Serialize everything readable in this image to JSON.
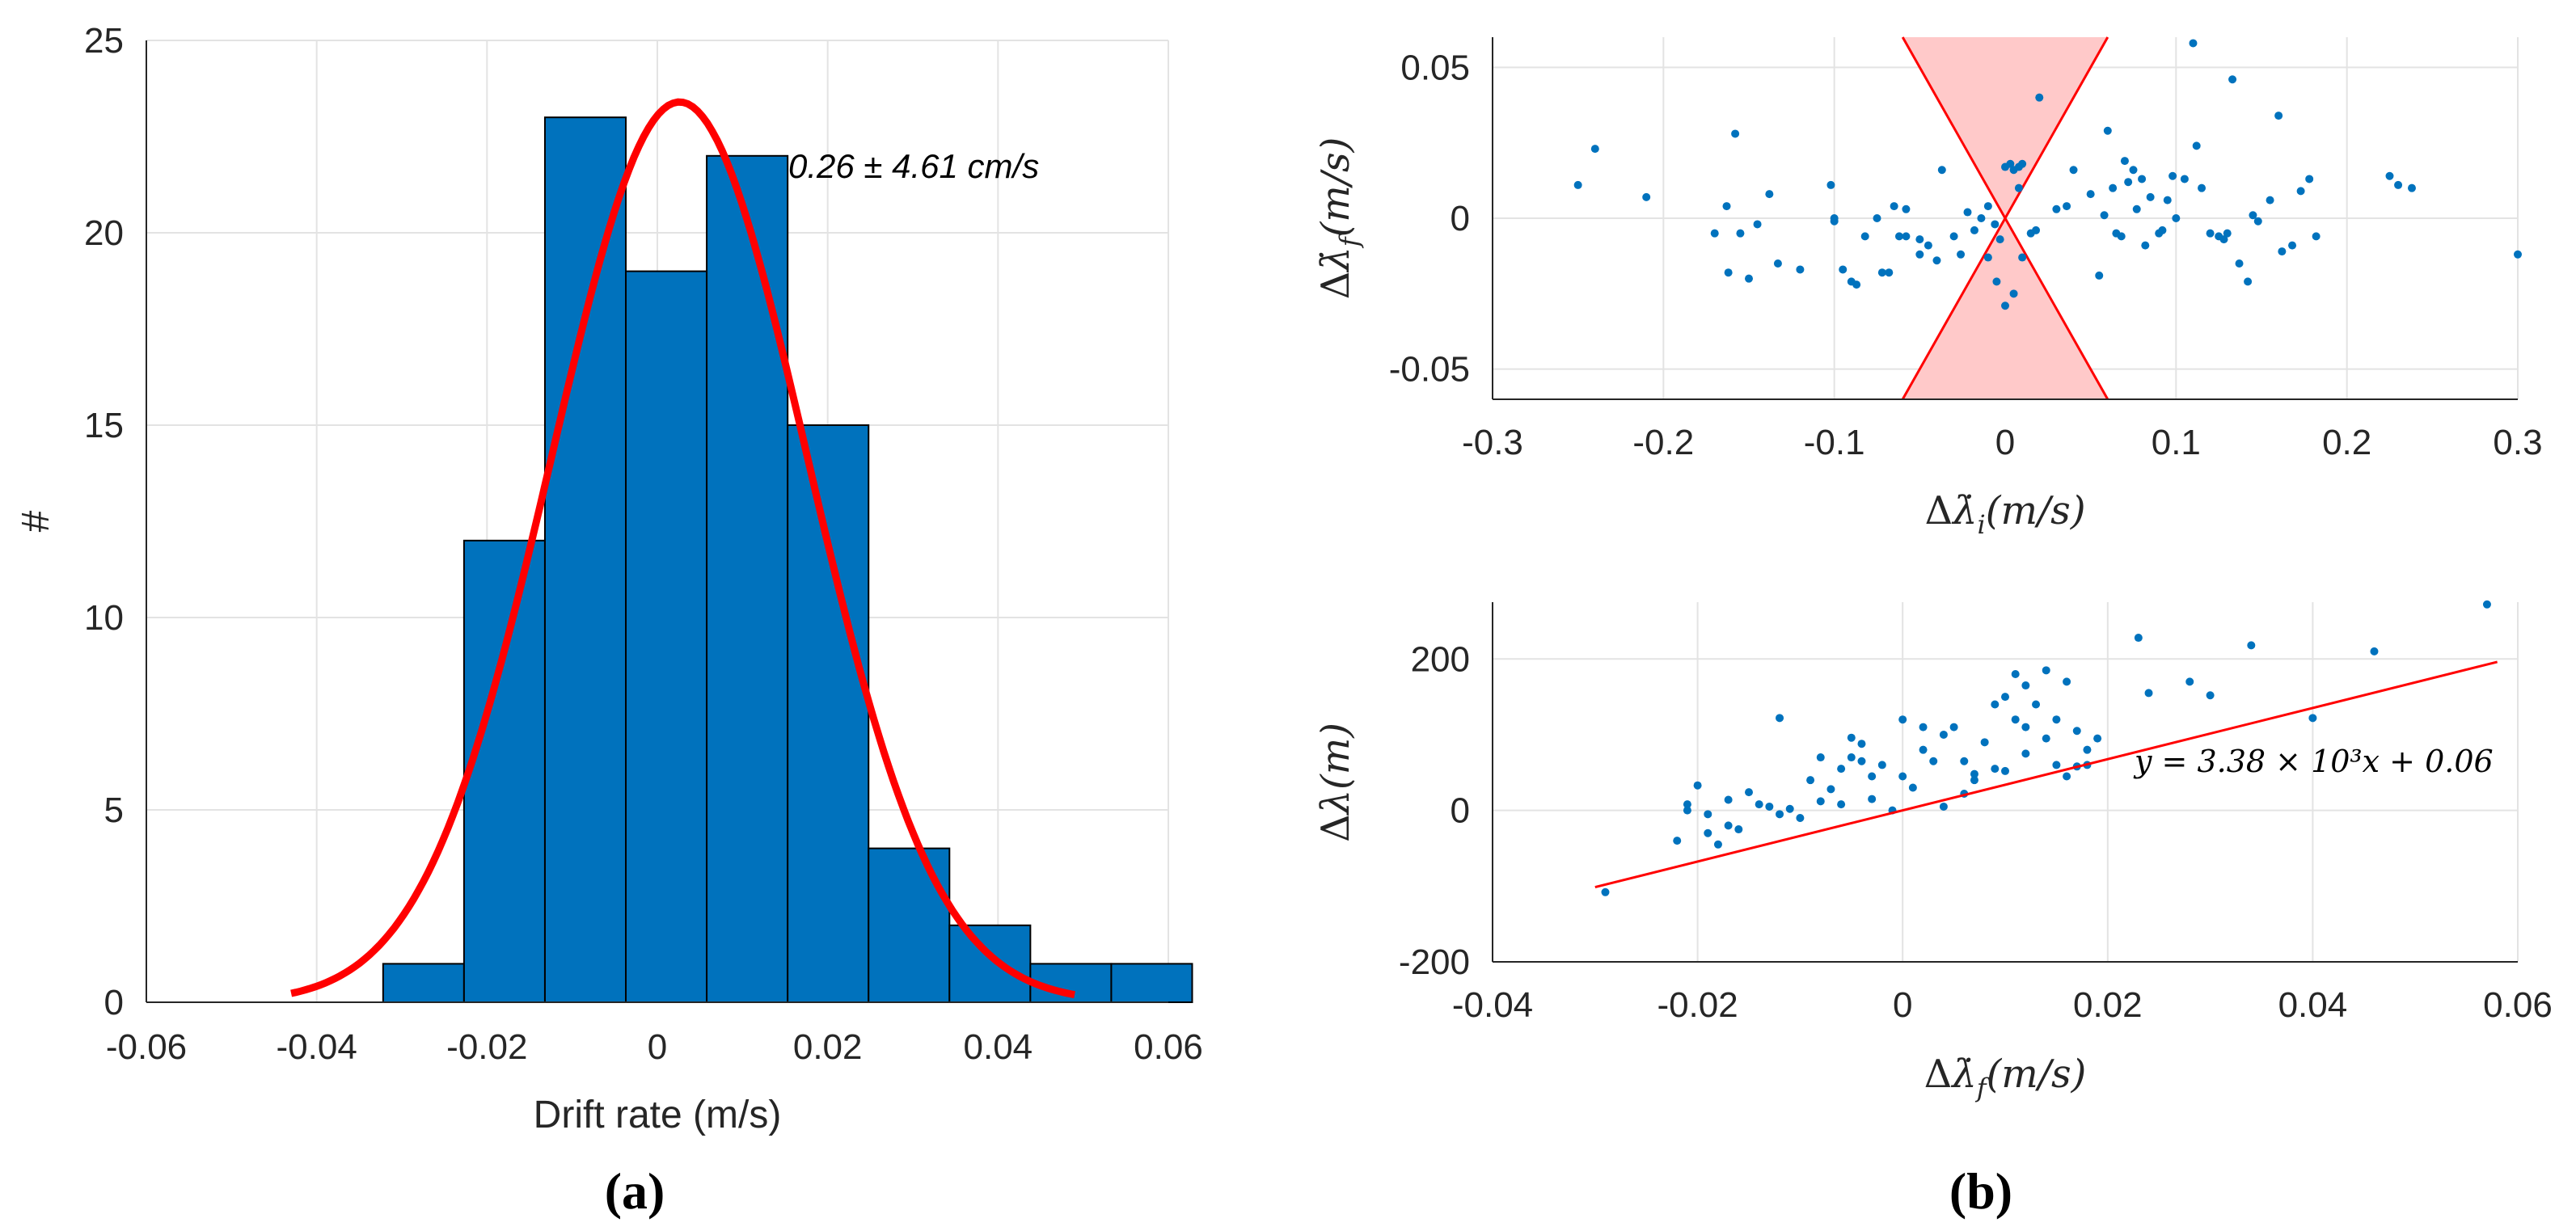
{
  "chart_data": [
    {
      "type": "bar",
      "panel": "(a)",
      "xlabel": "Drift rate (m/s)",
      "ylabel": "#",
      "xlim": [
        -0.06,
        0.06
      ],
      "ylim": [
        0,
        25
      ],
      "xticks": [
        "-0.06",
        "-0.04",
        "-0.02",
        "0",
        "0.02",
        "0.04",
        "0.06"
      ],
      "yticks": [
        "0",
        "5",
        "10",
        "15",
        "20",
        "25"
      ],
      "grid": true,
      "annotation": "0.26 ± 4.61 cm/s",
      "bin_edges": [
        -0.0322,
        -0.0227,
        -0.0132,
        -0.0037,
        0.0058,
        0.0153,
        0.0248,
        0.0343,
        0.0438,
        0.0533,
        0.0628
      ],
      "counts": [
        1,
        12,
        23,
        19,
        22,
        15,
        4,
        2,
        1,
        1
      ],
      "bar_color": "#0072BD",
      "fit": {
        "type": "normal",
        "mean": 0.0026,
        "std": 0.015,
        "peak": 23.4,
        "x_range": [
          -0.043,
          0.049
        ],
        "color": "#FF0000"
      }
    },
    {
      "type": "scatter",
      "panel": "(b) top",
      "xlabel": "Δλ̇ᵢ (m/s)",
      "ylabel": "Δλ̇f (m/s)",
      "xlim": [
        -0.3,
        0.3
      ],
      "ylim": [
        -0.06,
        0.06
      ],
      "xticks": [
        "-0.3",
        "-0.2",
        "-0.1",
        "0",
        "0.1",
        "0.2",
        "0.3"
      ],
      "yticks": [
        "-0.05",
        "0",
        "0.05"
      ],
      "grid": true,
      "shaded_region": {
        "description": "double cone |y| >= |x|",
        "apex": [
          0,
          0
        ],
        "edges": [
          [
            -0.06,
            0.06
          ],
          [
            0.06,
            0.06
          ],
          [
            -0.06,
            -0.06
          ],
          [
            0.06,
            -0.06
          ]
        ],
        "fill": "#FFC9C9",
        "line": "#FF0000"
      },
      "point_color": "#0072BD",
      "points": [
        [
          -0.25,
          0.011
        ],
        [
          -0.24,
          0.023
        ],
        [
          -0.21,
          0.007
        ],
        [
          -0.163,
          0.004
        ],
        [
          -0.158,
          0.028
        ],
        [
          -0.162,
          -0.018
        ],
        [
          -0.155,
          -0.005
        ],
        [
          -0.15,
          -0.02
        ],
        [
          -0.138,
          0.008
        ],
        [
          -0.145,
          -0.002
        ],
        [
          -0.12,
          -0.017
        ],
        [
          -0.102,
          0.011
        ],
        [
          -0.1,
          -0.001
        ],
        [
          -0.1,
          0.0
        ],
        [
          -0.095,
          -0.017
        ],
        [
          -0.09,
          -0.021
        ],
        [
          -0.087,
          -0.022
        ],
        [
          -0.072,
          -0.018
        ],
        [
          -0.068,
          -0.018
        ],
        [
          -0.065,
          0.004
        ],
        [
          -0.062,
          -0.006
        ],
        [
          -0.058,
          0.003
        ],
        [
          -0.05,
          -0.007
        ],
        [
          -0.05,
          -0.012
        ],
        [
          -0.045,
          -0.009
        ],
        [
          -0.04,
          -0.014
        ],
        [
          -0.037,
          0.016
        ],
        [
          -0.03,
          -0.006
        ],
        [
          -0.026,
          -0.012
        ],
        [
          -0.018,
          -0.004
        ],
        [
          -0.014,
          0.0
        ],
        [
          -0.01,
          0.004
        ],
        [
          -0.006,
          -0.002
        ],
        [
          -0.003,
          -0.007
        ],
        [
          0.0,
          0.017
        ],
        [
          0.003,
          0.018
        ],
        [
          0.005,
          0.016
        ],
        [
          0.008,
          0.01
        ],
        [
          0.008,
          0.017
        ],
        [
          0.01,
          0.018
        ],
        [
          -0.01,
          -0.013
        ],
        [
          -0.005,
          -0.021
        ],
        [
          0.0,
          -0.029
        ],
        [
          0.005,
          -0.025
        ],
        [
          0.01,
          -0.013
        ],
        [
          0.02,
          0.04
        ],
        [
          0.015,
          -0.005
        ],
        [
          0.03,
          0.003
        ],
        [
          0.04,
          0.016
        ],
        [
          0.05,
          0.008
        ],
        [
          0.055,
          -0.019
        ],
        [
          0.058,
          0.001
        ],
        [
          0.06,
          0.029
        ],
        [
          0.063,
          0.01
        ],
        [
          0.065,
          -0.005
        ],
        [
          0.07,
          0.019
        ],
        [
          0.072,
          0.012
        ],
        [
          0.075,
          0.016
        ],
        [
          0.077,
          0.003
        ],
        [
          0.08,
          0.013
        ],
        [
          0.082,
          -0.009
        ],
        [
          0.085,
          0.007
        ],
        [
          0.092,
          -0.004
        ],
        [
          0.095,
          0.006
        ],
        [
          0.098,
          0.014
        ],
        [
          0.105,
          0.013
        ],
        [
          0.11,
          0.058
        ],
        [
          0.112,
          0.024
        ],
        [
          0.115,
          0.01
        ],
        [
          0.12,
          -0.005
        ],
        [
          0.125,
          -0.006
        ],
        [
          0.128,
          -0.007
        ],
        [
          0.13,
          -0.005
        ],
        [
          0.133,
          0.046
        ],
        [
          0.137,
          -0.015
        ],
        [
          0.142,
          -0.021
        ],
        [
          0.148,
          -0.001
        ],
        [
          0.155,
          0.006
        ],
        [
          0.16,
          0.034
        ],
        [
          0.162,
          -0.011
        ],
        [
          0.168,
          -0.009
        ],
        [
          0.173,
          0.009
        ],
        [
          0.178,
          0.013
        ],
        [
          0.182,
          -0.006
        ],
        [
          0.225,
          0.014
        ],
        [
          0.23,
          0.011
        ],
        [
          0.238,
          0.01
        ],
        [
          0.3,
          -0.012
        ],
        [
          -0.17,
          -0.005
        ],
        [
          -0.133,
          -0.015
        ],
        [
          -0.075,
          0.0
        ],
        [
          -0.058,
          -0.006
        ],
        [
          -0.022,
          0.002
        ],
        [
          0.036,
          0.004
        ],
        [
          0.068,
          -0.006
        ],
        [
          0.1,
          0.0
        ],
        [
          0.145,
          0.001
        ],
        [
          0.018,
          -0.004
        ],
        [
          -0.082,
          -0.006
        ],
        [
          0.09,
          -0.005
        ]
      ]
    },
    {
      "type": "scatter",
      "panel": "(b) bottom",
      "xlabel": "Δλ̇f (m/s)",
      "ylabel": "Δλ (m)",
      "xlim": [
        -0.04,
        0.06
      ],
      "ylim": [
        -200,
        275
      ],
      "xticks": [
        "-0.04",
        "-0.02",
        "0",
        "0.02",
        "0.04",
        "0.06"
      ],
      "yticks": [
        "-200",
        "0",
        "200"
      ],
      "grid": true,
      "equation": "y = 3.38 × 10³x + 0.06",
      "fit_line": {
        "slope": 3380,
        "intercept": 0.06,
        "x_range": [
          -0.03,
          0.058
        ],
        "color": "#FF0000"
      },
      "point_color": "#0072BD",
      "points": [
        [
          -0.029,
          -108
        ],
        [
          -0.022,
          -40
        ],
        [
          -0.021,
          0
        ],
        [
          -0.021,
          8
        ],
        [
          -0.02,
          33
        ],
        [
          -0.019,
          -30
        ],
        [
          -0.018,
          -45
        ],
        [
          -0.017,
          14
        ],
        [
          -0.016,
          -25
        ],
        [
          -0.015,
          24
        ],
        [
          -0.014,
          8
        ],
        [
          -0.012,
          -5
        ],
        [
          -0.011,
          2
        ],
        [
          -0.01,
          -10
        ],
        [
          -0.009,
          40
        ],
        [
          -0.008,
          12
        ],
        [
          -0.007,
          28
        ],
        [
          -0.006,
          55
        ],
        [
          -0.005,
          70
        ],
        [
          -0.005,
          96
        ],
        [
          -0.004,
          88
        ],
        [
          -0.003,
          15
        ],
        [
          -0.002,
          60
        ],
        [
          -0.001,
          0
        ],
        [
          0.0,
          120
        ],
        [
          0.001,
          30
        ],
        [
          0.002,
          80
        ],
        [
          0.003,
          65
        ],
        [
          0.004,
          100
        ],
        [
          0.005,
          110
        ],
        [
          0.006,
          65
        ],
        [
          0.007,
          40
        ],
        [
          0.008,
          90
        ],
        [
          0.009,
          55
        ],
        [
          0.01,
          150
        ],
        [
          0.011,
          180
        ],
        [
          0.011,
          120
        ],
        [
          0.012,
          75
        ],
        [
          0.013,
          140
        ],
        [
          0.014,
          95
        ],
        [
          0.014,
          185
        ],
        [
          0.015,
          60
        ],
        [
          0.016,
          170
        ],
        [
          0.017,
          105
        ],
        [
          0.018,
          80
        ],
        [
          -0.012,
          122
        ],
        [
          -0.008,
          70
        ],
        [
          -0.004,
          65
        ],
        [
          0.002,
          110
        ],
        [
          0.006,
          22
        ],
        [
          0.009,
          140
        ],
        [
          0.012,
          110
        ],
        [
          0.015,
          120
        ],
        [
          0.018,
          60
        ],
        [
          0.019,
          95
        ],
        [
          0.023,
          228
        ],
        [
          0.024,
          155
        ],
        [
          0.028,
          170
        ],
        [
          0.03,
          152
        ],
        [
          0.034,
          218
        ],
        [
          0.04,
          122
        ],
        [
          0.046,
          210
        ],
        [
          0.057,
          272
        ],
        [
          -0.019,
          -5
        ],
        [
          -0.017,
          -20
        ],
        [
          -0.013,
          5
        ],
        [
          -0.006,
          8
        ],
        [
          -0.003,
          45
        ],
        [
          0.0,
          45
        ],
        [
          0.004,
          5
        ],
        [
          0.007,
          48
        ],
        [
          0.01,
          52
        ],
        [
          0.012,
          165
        ],
        [
          0.016,
          45
        ],
        [
          0.017,
          58
        ]
      ]
    }
  ],
  "panel_labels": {
    "a": "(a)",
    "b": "(b)"
  }
}
